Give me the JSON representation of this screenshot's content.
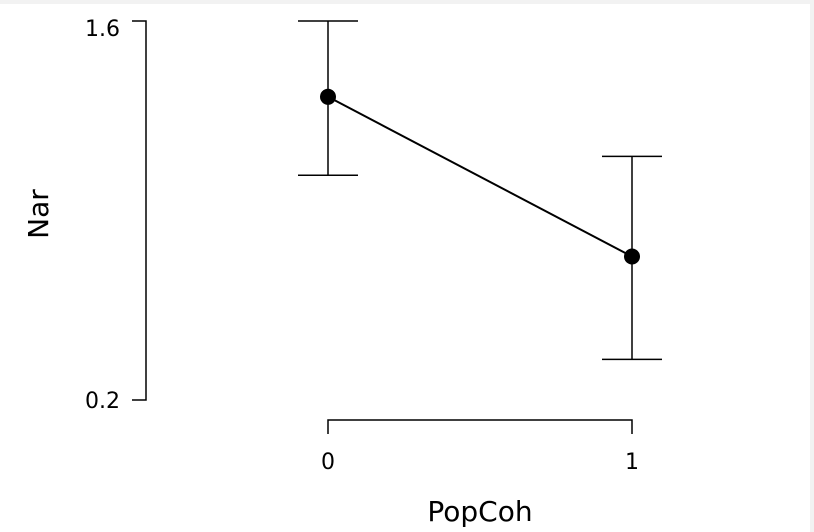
{
  "chart_data": {
    "type": "line",
    "xlabel": "PopCoh",
    "ylabel": "Nar",
    "ylim": [
      0.2,
      1.6
    ],
    "y_ticks": [
      "1.6",
      "0.2"
    ],
    "x_ticks": [
      "0",
      "1"
    ],
    "categories": [
      "0",
      "1"
    ],
    "series": [
      {
        "values": [
          1.32,
          0.73
        ],
        "error_lower": [
          1.03,
          0.35
        ],
        "error_upper": [
          1.6,
          1.1
        ]
      }
    ],
    "grid": false,
    "colors": {
      "line": "#000000",
      "background": "#ffffff"
    }
  }
}
